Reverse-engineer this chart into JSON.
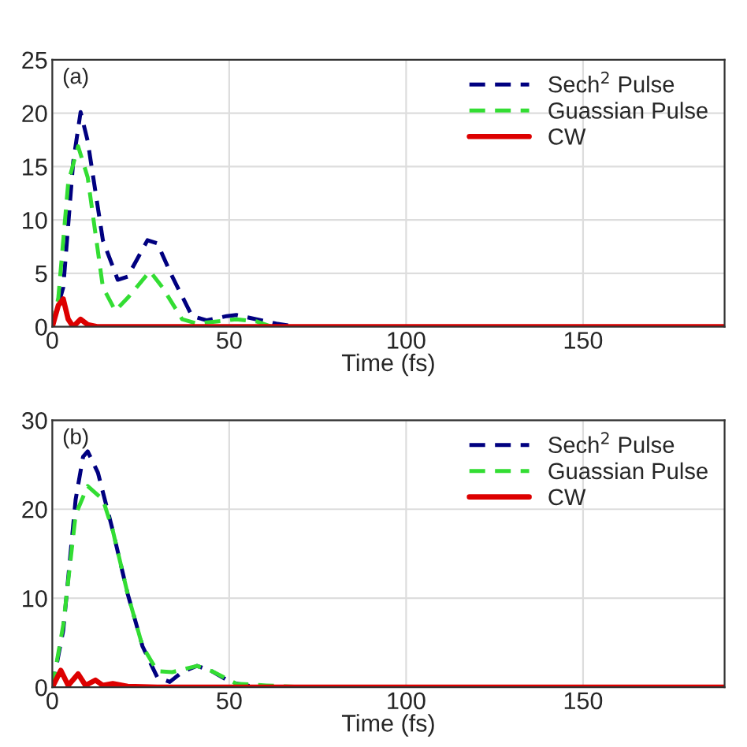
{
  "chart_data": [
    {
      "type": "line",
      "xlabel": "Time (fs)",
      "annotations": [
        "(a)"
      ],
      "xlim": [
        0,
        190
      ],
      "xticks": [
        0,
        50,
        100,
        150
      ],
      "ylim": [
        0,
        25
      ],
      "yticks": [
        0,
        5,
        10,
        15,
        20,
        25
      ],
      "grid": true,
      "legend": "top right",
      "series": [
        {
          "name": "Sech$^{2}$ Pulse",
          "color": "#000080",
          "line_style": "dashed",
          "x": [
            0,
            3.1,
            5.9,
            8,
            10,
            14.3,
            18.5,
            21.3,
            26.9,
            29.7,
            33.9,
            39.5,
            43.7,
            49.3,
            52,
            57.7,
            63.3,
            69,
            190
          ],
          "values": [
            0,
            3.7,
            15.4,
            20.1,
            17.4,
            8.1,
            4.4,
            4.7,
            8.1,
            7.8,
            4.7,
            1.0,
            0.6,
            1.0,
            1.1,
            0.7,
            0.3,
            0,
            0
          ]
        },
        {
          "name": "Guassian Pulse",
          "color": "#33dd33",
          "line_style": "dashed",
          "x": [
            0,
            1.7,
            4.5,
            7.3,
            10,
            14.3,
            17.8,
            21.3,
            27.6,
            31.1,
            36.7,
            40.9,
            46.5,
            52,
            57.7,
            62,
            190
          ],
          "values": [
            0,
            2.7,
            13.5,
            16.9,
            14,
            3.7,
            1.5,
            2.7,
            5.2,
            3.7,
            0.7,
            0.3,
            0.5,
            0.7,
            0.5,
            0,
            0
          ]
        },
        {
          "name": "CW",
          "color": "#dd0000",
          "line_style": "solid",
          "x": [
            0,
            1.7,
            3.1,
            4.5,
            5.9,
            8,
            10,
            12.9,
            190
          ],
          "values": [
            0,
            2.0,
            2.6,
            0.7,
            0,
            0.7,
            0.2,
            0,
            0
          ]
        }
      ]
    },
    {
      "type": "line",
      "xlabel": "Time (fs)",
      "annotations": [
        "(b)"
      ],
      "xlim": [
        0,
        190
      ],
      "xticks": [
        0,
        50,
        100,
        150
      ],
      "ylim": [
        0,
        30
      ],
      "yticks": [
        0,
        10,
        20,
        30
      ],
      "grid": true,
      "legend": "top right",
      "series": [
        {
          "name": "Sech$^{2}$ Pulse",
          "color": "#000080",
          "line_style": "dashed",
          "x": [
            0,
            3.1,
            6.6,
            8.7,
            10,
            12.9,
            17.1,
            21.3,
            25.5,
            29.7,
            33.2,
            36.7,
            40.9,
            45.1,
            50.7,
            56.3
          ],
          "values": [
            0,
            6.4,
            21.1,
            25.9,
            26.5,
            24.1,
            17.6,
            10.5,
            4.6,
            1.1,
            0.6,
            1.7,
            2.4,
            1.8,
            0.5,
            0.1
          ]
        },
        {
          "name": "Guassian Pulse",
          "color": "#33dd33",
          "line_style": "dashed",
          "x": [
            0,
            3.1,
            6.6,
            10,
            14.3,
            17.1,
            21.3,
            25.5,
            29.7,
            33.9,
            40.9,
            45.1,
            52,
            60.5,
            71.7,
            190
          ],
          "values": [
            0,
            7,
            19.4,
            22.6,
            21.1,
            17.6,
            10.5,
            4.6,
            1.8,
            1.7,
            2.4,
            1.8,
            0.4,
            0.2,
            0,
            0
          ]
        },
        {
          "name": "CW",
          "color": "#dd0000",
          "line_style": "solid",
          "x": [
            0,
            2.4,
            4.5,
            7.3,
            9.4,
            12.2,
            14.3,
            17.1,
            21.3,
            29.7,
            190
          ],
          "values": [
            0,
            1.9,
            0.2,
            1.5,
            0.2,
            0.8,
            0.2,
            0.4,
            0.1,
            0,
            0
          ]
        }
      ]
    }
  ]
}
